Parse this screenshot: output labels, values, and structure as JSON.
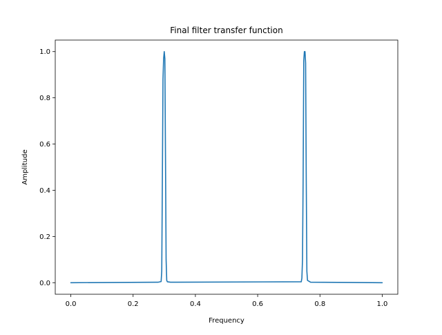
{
  "chart_data": {
    "type": "line",
    "title": "Final filter transfer function",
    "xlabel": "Frequency",
    "ylabel": "Amplitude",
    "xlim": [
      -0.05,
      1.05
    ],
    "ylim": [
      -0.05,
      1.05
    ],
    "grid": false,
    "x_ticks": [
      0.0,
      0.2,
      0.4,
      0.6,
      0.8,
      1.0
    ],
    "x_tick_labels": [
      "0.0",
      "0.2",
      "0.4",
      "0.6",
      "0.8",
      "1.0"
    ],
    "y_ticks": [
      0.0,
      0.2,
      0.4,
      0.6,
      0.8,
      1.0
    ],
    "y_tick_labels": [
      "0.0",
      "0.2",
      "0.4",
      "0.6",
      "0.8",
      "1.0"
    ],
    "series": [
      {
        "color": "#1f77b4",
        "x": [
          0.0,
          0.28,
          0.29,
          0.292,
          0.294,
          0.296,
          0.298,
          0.3,
          0.302,
          0.304,
          0.306,
          0.308,
          0.31,
          0.32,
          0.74,
          0.742,
          0.744,
          0.746,
          0.748,
          0.75,
          0.752,
          0.754,
          0.756,
          0.758,
          0.76,
          0.77,
          1.0
        ],
        "y": [
          0.0,
          0.002,
          0.005,
          0.05,
          0.45,
          0.88,
          0.97,
          1.0,
          0.97,
          0.55,
          0.1,
          0.01,
          0.004,
          0.002,
          0.004,
          0.02,
          0.1,
          0.45,
          0.96,
          1.0,
          1.0,
          0.95,
          0.45,
          0.05,
          0.01,
          0.002,
          0.0
        ]
      }
    ]
  }
}
